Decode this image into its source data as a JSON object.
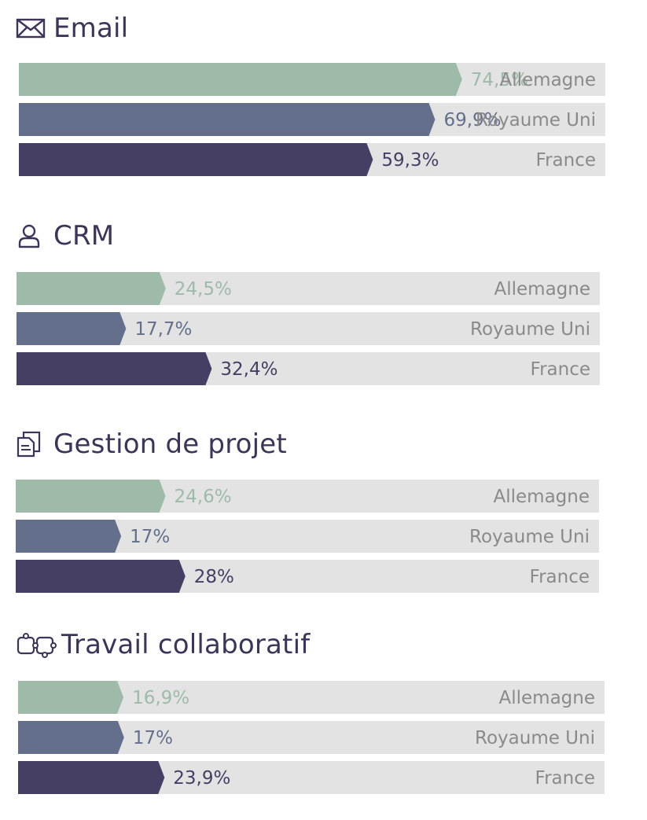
{
  "colors": {
    "track": "#e3e3e3",
    "allemagne": "#9dbba8",
    "royaume_uni": "#646f8b",
    "france": "#463f64",
    "title": "#3d3458",
    "country_text": "#8a8a8a"
  },
  "sections": [
    {
      "title": "Email",
      "icon": "envelope-icon"
    },
    {
      "title": "CRM",
      "icon": "user-icon"
    },
    {
      "title": "Gestion de projet",
      "icon": "documents-icon"
    },
    {
      "title": "Travail collaboratif",
      "icon": "puzzle-icon"
    }
  ],
  "chart_data": [
    {
      "type": "bar",
      "title": "Email",
      "categories": [
        "Allemagne",
        "Royaume Uni",
        "France"
      ],
      "values": [
        74.5,
        69.9,
        59.3
      ],
      "labels": [
        "74,5%",
        "69,9%",
        "59,3%"
      ],
      "ylim": [
        0,
        100
      ]
    },
    {
      "type": "bar",
      "title": "CRM",
      "categories": [
        "Allemagne",
        "Royaume Uni",
        "France"
      ],
      "values": [
        24.5,
        17.7,
        32.4
      ],
      "labels": [
        "24,5%",
        "17,7%",
        "32,4%"
      ],
      "ylim": [
        0,
        100
      ]
    },
    {
      "type": "bar",
      "title": "Gestion de projet",
      "categories": [
        "Allemagne",
        "Royaume Uni",
        "France"
      ],
      "values": [
        24.6,
        17,
        28
      ],
      "labels": [
        "24,6%",
        "17%",
        "28%"
      ],
      "ylim": [
        0,
        100
      ]
    },
    {
      "type": "bar",
      "title": "Travail collaboratif",
      "categories": [
        "Allemagne",
        "Royaume Uni",
        "France"
      ],
      "values": [
        16.9,
        17,
        23.9
      ],
      "labels": [
        "16,9%",
        "17%",
        "23,9%"
      ],
      "ylim": [
        0,
        100
      ]
    }
  ]
}
